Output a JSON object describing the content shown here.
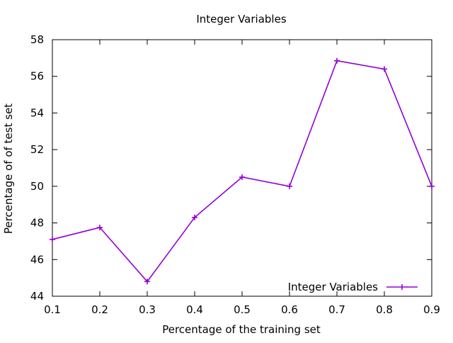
{
  "chart_data": {
    "type": "line",
    "title": "Integer Variables",
    "xlabel": "Percentage of the training set",
    "ylabel": "Percentage of of test set",
    "xlim": [
      0.1,
      0.9
    ],
    "ylim": [
      44,
      58
    ],
    "xticks": [
      0.1,
      0.2,
      0.3,
      0.4,
      0.5,
      0.6,
      0.7,
      0.8,
      0.9
    ],
    "yticks": [
      44,
      46,
      48,
      50,
      52,
      54,
      56,
      58
    ],
    "grid": false,
    "legend_position": "bottom-right",
    "series": [
      {
        "name": "Integer Variables",
        "color": "#9400D3",
        "marker": "plus",
        "x": [
          0.1,
          0.2,
          0.3,
          0.4,
          0.5,
          0.6,
          0.7,
          0.8,
          0.9
        ],
        "y": [
          47.1,
          47.75,
          44.8,
          48.3,
          50.5,
          50.0,
          56.85,
          56.4,
          50.0
        ]
      }
    ]
  }
}
